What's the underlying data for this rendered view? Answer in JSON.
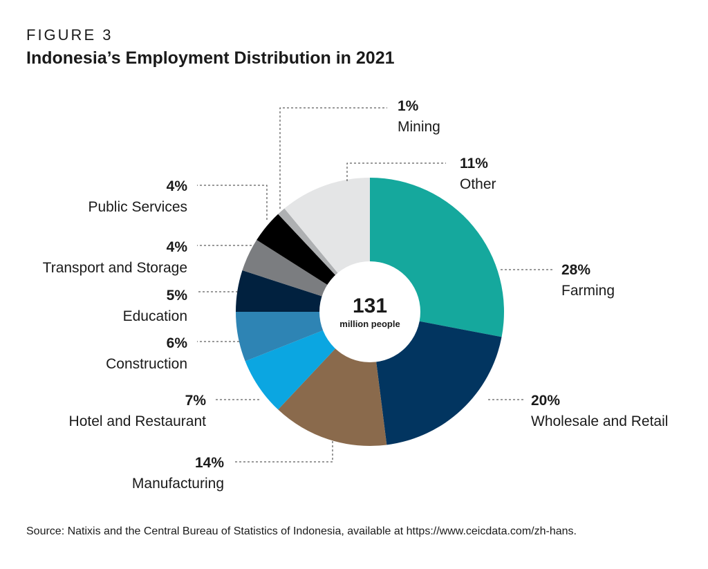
{
  "figure_label": "FIGURE 3",
  "title": "Indonesia’s Employment Distribution in 2021",
  "source": "Source: Natixis and the Central Bureau of Statistics of Indonesia, available at https://www.ceicdata.com/zh-hans.",
  "chart_data": {
    "type": "pie",
    "donut": true,
    "title": "Indonesia’s Employment Distribution in 2021",
    "center_value": "131",
    "center_label": "million people",
    "slices": [
      {
        "label": "Farming",
        "value": 28,
        "pct_label": "28%",
        "color": "#15a89d"
      },
      {
        "label": "Wholesale and Retail",
        "value": 20,
        "pct_label": "20%",
        "color": "#023560"
      },
      {
        "label": "Manufacturing",
        "value": 14,
        "pct_label": "14%",
        "color": "#8a6a4c"
      },
      {
        "label": "Hotel and Restaurant",
        "value": 7,
        "pct_label": "7%",
        "color": "#0ba6e1"
      },
      {
        "label": "Construction",
        "value": 6,
        "pct_label": "6%",
        "color": "#2e84b4"
      },
      {
        "label": "Education",
        "value": 5,
        "pct_label": "5%",
        "color": "#01213f"
      },
      {
        "label": "Transport and Storage",
        "value": 4,
        "pct_label": "4%",
        "color": "#7b7d80"
      },
      {
        "label": "Public Services",
        "value": 4,
        "pct_label": "4%",
        "color": "#000000"
      },
      {
        "label": "Mining",
        "value": 1,
        "pct_label": "1%",
        "color": "#aeb0b2"
      },
      {
        "label": "Other",
        "value": 11,
        "pct_label": "11%",
        "color": "#e4e5e6"
      }
    ]
  }
}
